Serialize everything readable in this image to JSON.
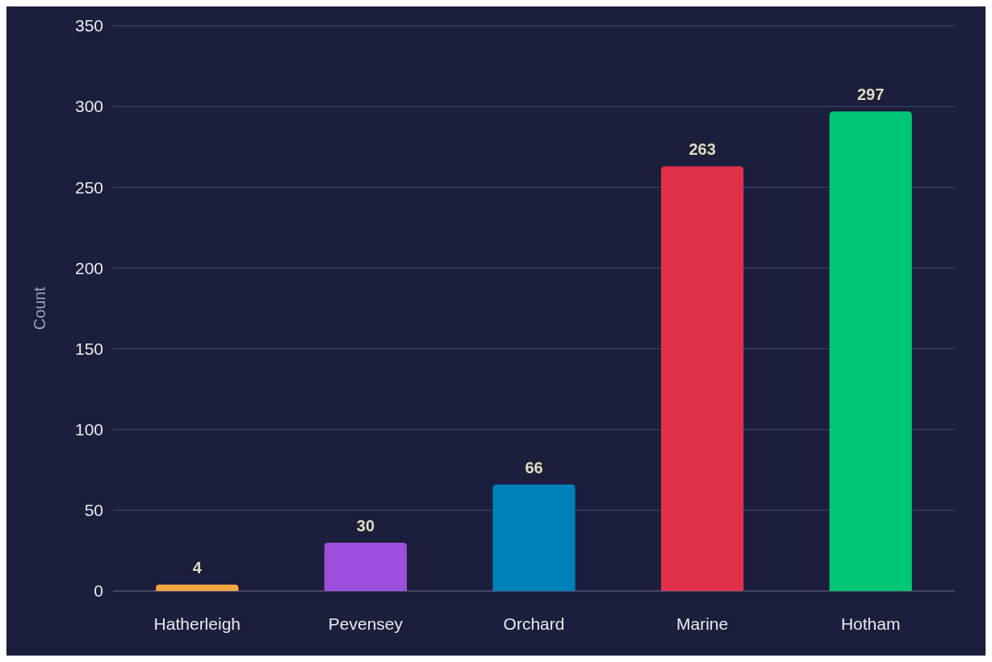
{
  "chart_data": {
    "type": "bar",
    "ylabel": "Count",
    "categories": [
      "Hatherleigh",
      "Pevensey",
      "Orchard",
      "Marine",
      "Hotham"
    ],
    "values": [
      4,
      30,
      66,
      263,
      297
    ],
    "colors": [
      "#f5a742",
      "#9b4fdb",
      "#0080bb",
      "#e0314b",
      "#00c775"
    ],
    "ylim": [
      0,
      350
    ],
    "yticks": [
      0,
      50,
      100,
      150,
      200,
      250,
      300,
      350
    ],
    "grid": "y",
    "data_labels": true
  }
}
